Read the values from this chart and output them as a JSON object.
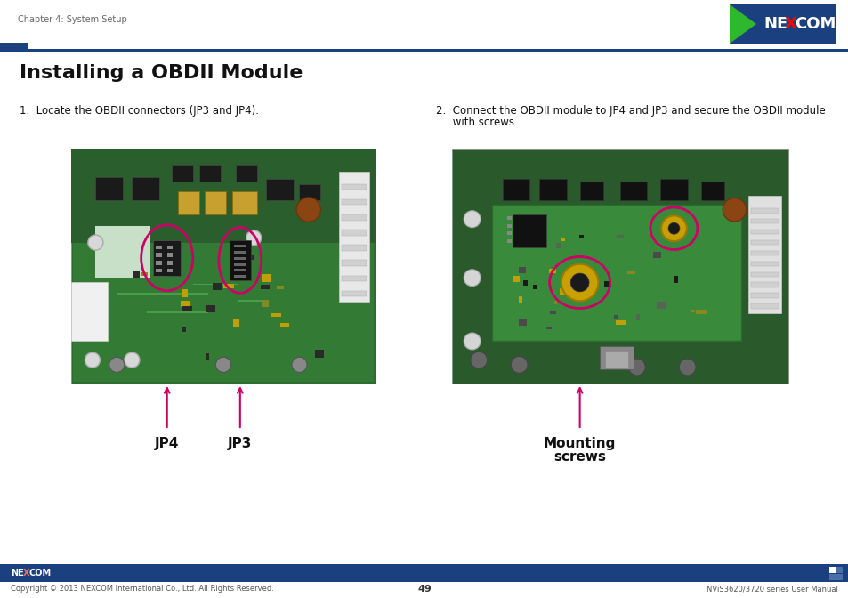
{
  "page_title": "Installing a OBDII Module",
  "header_text": "Chapter 4: System Setup",
  "footer_copyright": "Copyright © 2013 NEXCOM International Co., Ltd. All Rights Reserved.",
  "footer_page": "49",
  "footer_right": "NViS3620/3720 series User Manual",
  "step1_text": "1.  Locate the OBDII connectors (JP3 and JP4).",
  "step2_line1": "2.  Connect the OBDII module to JP4 and JP3 and secure the OBDII module",
  "step2_line2": "     with screws.",
  "label1a": "JP4",
  "label1b": "JP3",
  "label2a": "Mounting",
  "label2b": "screws",
  "nexcom_blue": "#1a4080",
  "nexcom_green": "#2db82d",
  "header_line_color": "#1a4080",
  "footer_bar_color": "#1a4080",
  "arrow_color": "#cc0066",
  "circle_color": "#cc0066",
  "bg_color": "#ffffff",
  "title_fontsize": 16,
  "body_fontsize": 8.5,
  "label_fontsize": 11
}
